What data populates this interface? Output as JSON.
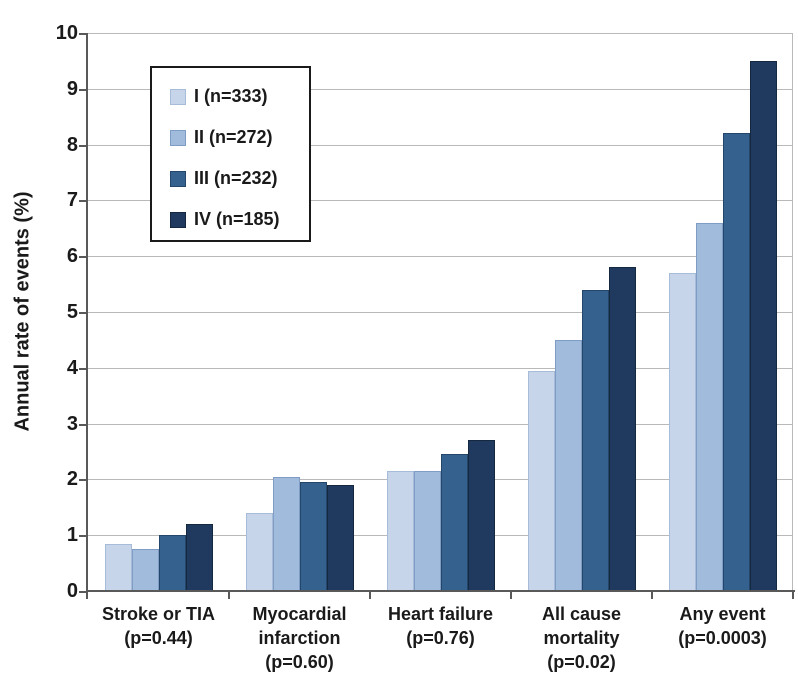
{
  "chart_data": {
    "type": "bar",
    "title": "",
    "ylabel": "Annual rate of events (%)",
    "xlabel": "",
    "ylim": [
      0,
      10
    ],
    "ytick_step": 1,
    "grid": true,
    "legend_position": "upper-left-inside",
    "axis_color": "#595959",
    "gridline_color": "#b9b9b9",
    "text_color": "#1a1a1a",
    "categories": [
      "Stroke or TIA\n(p=0.44)",
      "Myocardial\ninfarction\n(p=0.60)",
      "Heart failure\n(p=0.76)",
      "All cause\nmortality\n(p=0.02)",
      "Any event\n(p=0.0003)"
    ],
    "series": [
      {
        "name": "I (n=333)",
        "color": "#c6d5e9",
        "border_color": "#a6bcd8",
        "values": [
          0.85,
          1.4,
          2.15,
          3.95,
          5.7
        ]
      },
      {
        "name": "II (n=272)",
        "color": "#a1bbdc",
        "border_color": "#7e9cc4",
        "values": [
          0.75,
          2.05,
          2.15,
          4.5,
          6.6
        ]
      },
      {
        "name": "III (n=232)",
        "color": "#35618f",
        "border_color": "#24466b",
        "values": [
          1.0,
          1.95,
          2.45,
          5.4,
          8.2
        ]
      },
      {
        "name": "IV (n=185)",
        "color": "#1f3a5e",
        "border_color": "#142840",
        "values": [
          1.2,
          1.9,
          2.7,
          5.8,
          9.5
        ]
      }
    ]
  }
}
